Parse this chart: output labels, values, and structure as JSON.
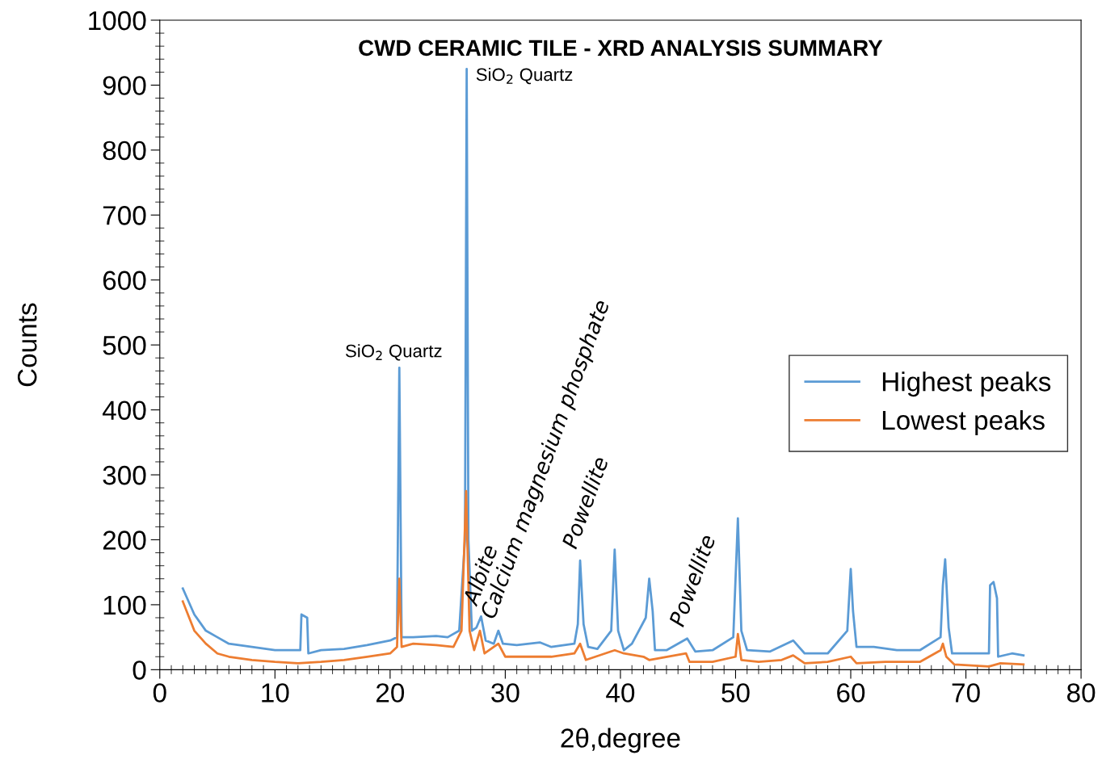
{
  "chart_data": {
    "type": "line",
    "title": "CWD CERAMIC TILE - XRD ANALYSIS SUMMARY",
    "xlabel": "2θ,degree",
    "ylabel": "Counts",
    "xlim": [
      0,
      80
    ],
    "xticks": [
      0,
      10,
      20,
      30,
      40,
      50,
      60,
      70,
      80
    ],
    "ylim": [
      0,
      1000
    ],
    "yticks": [
      0,
      100,
      200,
      300,
      400,
      500,
      600,
      700,
      800,
      900,
      1000
    ],
    "grid": false,
    "legend": "right",
    "marker": "none",
    "line_style": "solid",
    "series": [
      {
        "name": "Highest peaks",
        "color": "#5b9bd5",
        "x": [
          2.0,
          3,
          4,
          5,
          6,
          8,
          10,
          12.2,
          12.3,
          12.8,
          12.9,
          14,
          16,
          18,
          20,
          20.6,
          20.8,
          21.0,
          22,
          24,
          25,
          26,
          26.5,
          26.65,
          26.8,
          27.1,
          27.5,
          27.9,
          28.3,
          29,
          29.4,
          29.8,
          31,
          33,
          34,
          36,
          36.3,
          36.5,
          36.8,
          37.2,
          38,
          39.2,
          39.5,
          39.8,
          40.3,
          41,
          42.2,
          42.5,
          42.8,
          43,
          44,
          45.8,
          46.5,
          48,
          49.8,
          50.2,
          50.5,
          51,
          53,
          55,
          56,
          58,
          59.7,
          60,
          60.2,
          60.5,
          62,
          64,
          66,
          67.8,
          68,
          68.2,
          68.5,
          68.8,
          70,
          72,
          72.1,
          72.4,
          72.7,
          72.8,
          74,
          75
        ],
        "values": [
          125,
          85,
          60,
          50,
          40,
          35,
          30,
          30,
          85,
          80,
          25,
          30,
          32,
          38,
          45,
          50,
          465,
          50,
          50,
          52,
          50,
          60,
          200,
          925,
          200,
          60,
          65,
          82,
          45,
          40,
          60,
          40,
          38,
          42,
          35,
          40,
          70,
          168,
          70,
          35,
          32,
          60,
          185,
          60,
          30,
          40,
          80,
          140,
          90,
          30,
          30,
          48,
          28,
          30,
          50,
          233,
          60,
          30,
          28,
          45,
          25,
          25,
          60,
          155,
          90,
          35,
          35,
          30,
          30,
          50,
          130,
          170,
          65,
          25,
          25,
          25,
          130,
          135,
          110,
          20,
          25,
          22
        ]
      },
      {
        "name": "Lowest peaks",
        "color": "#ed7d31",
        "x": [
          2.0,
          3,
          4,
          5,
          6,
          8,
          10,
          12,
          14,
          16,
          18,
          20,
          20.6,
          20.8,
          21,
          22,
          24,
          25.5,
          26.2,
          26.6,
          26.9,
          27.3,
          27.8,
          28.2,
          29.4,
          30,
          32,
          34,
          36,
          36.5,
          37,
          39.5,
          40.3,
          42,
          42.5,
          45.7,
          46,
          48,
          50,
          50.2,
          50.5,
          52,
          54,
          55,
          56,
          58,
          60,
          60.5,
          63,
          66,
          67.8,
          68.0,
          68.3,
          69,
          72,
          73,
          75
        ],
        "values": [
          105,
          60,
          40,
          25,
          20,
          15,
          12,
          10,
          12,
          15,
          20,
          25,
          35,
          140,
          35,
          40,
          38,
          35,
          60,
          275,
          60,
          30,
          60,
          25,
          40,
          20,
          20,
          20,
          25,
          40,
          15,
          30,
          25,
          20,
          15,
          25,
          12,
          12,
          20,
          55,
          15,
          12,
          15,
          22,
          10,
          12,
          20,
          10,
          12,
          12,
          30,
          40,
          20,
          8,
          5,
          10,
          8
        ]
      }
    ],
    "annotations": [
      {
        "text": "SiO$_{2}$ Quartz",
        "x": 20.8,
        "y": 465
      },
      {
        "text": "SiO$_{2}$ Quartz",
        "x": 26.65,
        "y": 925
      },
      {
        "text": "Albite",
        "x": 27.9,
        "y": 82
      },
      {
        "text": "Calcium magnesium phosphate",
        "x": 29.4,
        "y": 60
      },
      {
        "text": "Powellite",
        "x": 36.5,
        "y": 168
      },
      {
        "text": "Powellite",
        "x": 45.8,
        "y": 48
      }
    ]
  }
}
